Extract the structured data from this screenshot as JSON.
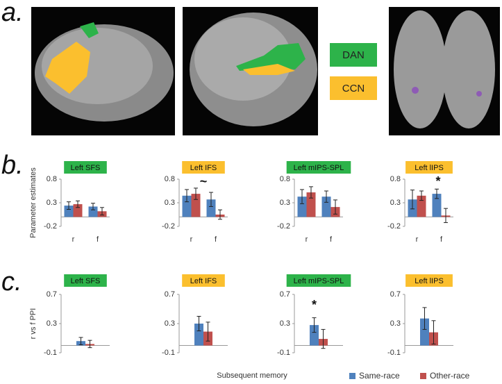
{
  "panel_labels": [
    "a.",
    "b.",
    "c."
  ],
  "network_legend": [
    {
      "name": "DAN",
      "color": "#2db34a"
    },
    {
      "name": "CCN",
      "color": "#fbbf2e"
    }
  ],
  "x_axis_label": "Subsequent memory",
  "chart_data": [
    {
      "type": "bar",
      "title": "Left SFS",
      "title_color": "#2db34a",
      "y_label": "Parameter estimates",
      "categories": [
        "r",
        "f"
      ],
      "ylim": [
        -0.2,
        0.8
      ],
      "yticks": [
        -0.2,
        0.3,
        0.8
      ],
      "series": [
        {
          "name": "Same-race",
          "color": "#4f81bd",
          "values": [
            0.24,
            0.22
          ],
          "errors": [
            0.08,
            0.07
          ]
        },
        {
          "name": "Other-race",
          "color": "#c0504d",
          "values": [
            0.27,
            0.12
          ],
          "errors": [
            0.07,
            0.08
          ]
        }
      ]
    },
    {
      "type": "bar",
      "title": "Left IFS",
      "title_color": "#fbbf2e",
      "annotation": "~",
      "categories": [
        "r",
        "f"
      ],
      "ylim": [
        -0.2,
        0.8
      ],
      "yticks": [
        -0.2,
        0.3,
        0.8
      ],
      "series": [
        {
          "name": "Same-race",
          "color": "#4f81bd",
          "values": [
            0.45,
            0.37
          ],
          "errors": [
            0.13,
            0.15
          ]
        },
        {
          "name": "Other-race",
          "color": "#c0504d",
          "values": [
            0.49,
            0.05
          ],
          "errors": [
            0.12,
            0.1
          ]
        }
      ]
    },
    {
      "type": "bar",
      "title": "Left mIPS-SPL",
      "title_color": "#2db34a",
      "categories": [
        "r",
        "f"
      ],
      "ylim": [
        -0.2,
        0.8
      ],
      "yticks": [
        -0.2,
        0.3,
        0.8
      ],
      "series": [
        {
          "name": "Same-race",
          "color": "#4f81bd",
          "values": [
            0.43,
            0.43
          ],
          "errors": [
            0.15,
            0.12
          ]
        },
        {
          "name": "Other-race",
          "color": "#c0504d",
          "values": [
            0.52,
            0.21
          ],
          "errors": [
            0.12,
            0.15
          ]
        }
      ]
    },
    {
      "type": "bar",
      "title": "Left lIPS",
      "title_color": "#fbbf2e",
      "annotation": "*",
      "categories": [
        "r",
        "f"
      ],
      "ylim": [
        -0.2,
        0.8
      ],
      "yticks": [
        -0.2,
        0.3,
        0.8
      ],
      "series": [
        {
          "name": "Same-race",
          "color": "#4f81bd",
          "values": [
            0.37,
            0.49
          ],
          "errors": [
            0.2,
            0.1
          ]
        },
        {
          "name": "Other-race",
          "color": "#c0504d",
          "values": [
            0.45,
            0.03
          ],
          "errors": [
            0.1,
            0.15
          ]
        }
      ]
    },
    {
      "type": "bar",
      "title": "Left SFS",
      "title_color": "#2db34a",
      "y_label": "r vs f PPI",
      "categories": [
        null
      ],
      "ylim": [
        -0.1,
        0.7
      ],
      "yticks": [
        -0.1,
        0.3,
        0.7
      ],
      "series": [
        {
          "name": "Same-race",
          "color": "#4f81bd",
          "values": [
            0.06
          ],
          "errors": [
            0.05
          ]
        },
        {
          "name": "Other-race",
          "color": "#c0504d",
          "values": [
            0.02
          ],
          "errors": [
            0.05
          ]
        }
      ]
    },
    {
      "type": "bar",
      "title": "Left IFS",
      "title_color": "#fbbf2e",
      "categories": [
        null
      ],
      "ylim": [
        -0.1,
        0.7
      ],
      "yticks": [
        -0.1,
        0.3,
        0.7
      ],
      "series": [
        {
          "name": "Same-race",
          "color": "#4f81bd",
          "values": [
            0.3
          ],
          "errors": [
            0.1
          ]
        },
        {
          "name": "Other-race",
          "color": "#c0504d",
          "values": [
            0.19
          ],
          "errors": [
            0.13
          ]
        }
      ]
    },
    {
      "type": "bar",
      "title": "Left mIPS-SPL",
      "title_color": "#2db34a",
      "annotation": "*",
      "categories": [
        null
      ],
      "ylim": [
        -0.1,
        0.7
      ],
      "yticks": [
        -0.1,
        0.3,
        0.7
      ],
      "series": [
        {
          "name": "Same-race",
          "color": "#4f81bd",
          "values": [
            0.28
          ],
          "errors": [
            0.1
          ]
        },
        {
          "name": "Other-race",
          "color": "#c0504d",
          "values": [
            0.09
          ],
          "errors": [
            0.13
          ]
        }
      ]
    },
    {
      "type": "bar",
      "title": "Left lIPS",
      "title_color": "#fbbf2e",
      "categories": [
        null
      ],
      "ylim": [
        -0.1,
        0.7
      ],
      "yticks": [
        -0.1,
        0.3,
        0.7
      ],
      "series": [
        {
          "name": "Same-race",
          "color": "#4f81bd",
          "values": [
            0.37
          ],
          "errors": [
            0.15
          ]
        },
        {
          "name": "Other-race",
          "color": "#c0504d",
          "values": [
            0.18
          ],
          "errors": [
            0.16
          ]
        }
      ]
    }
  ]
}
